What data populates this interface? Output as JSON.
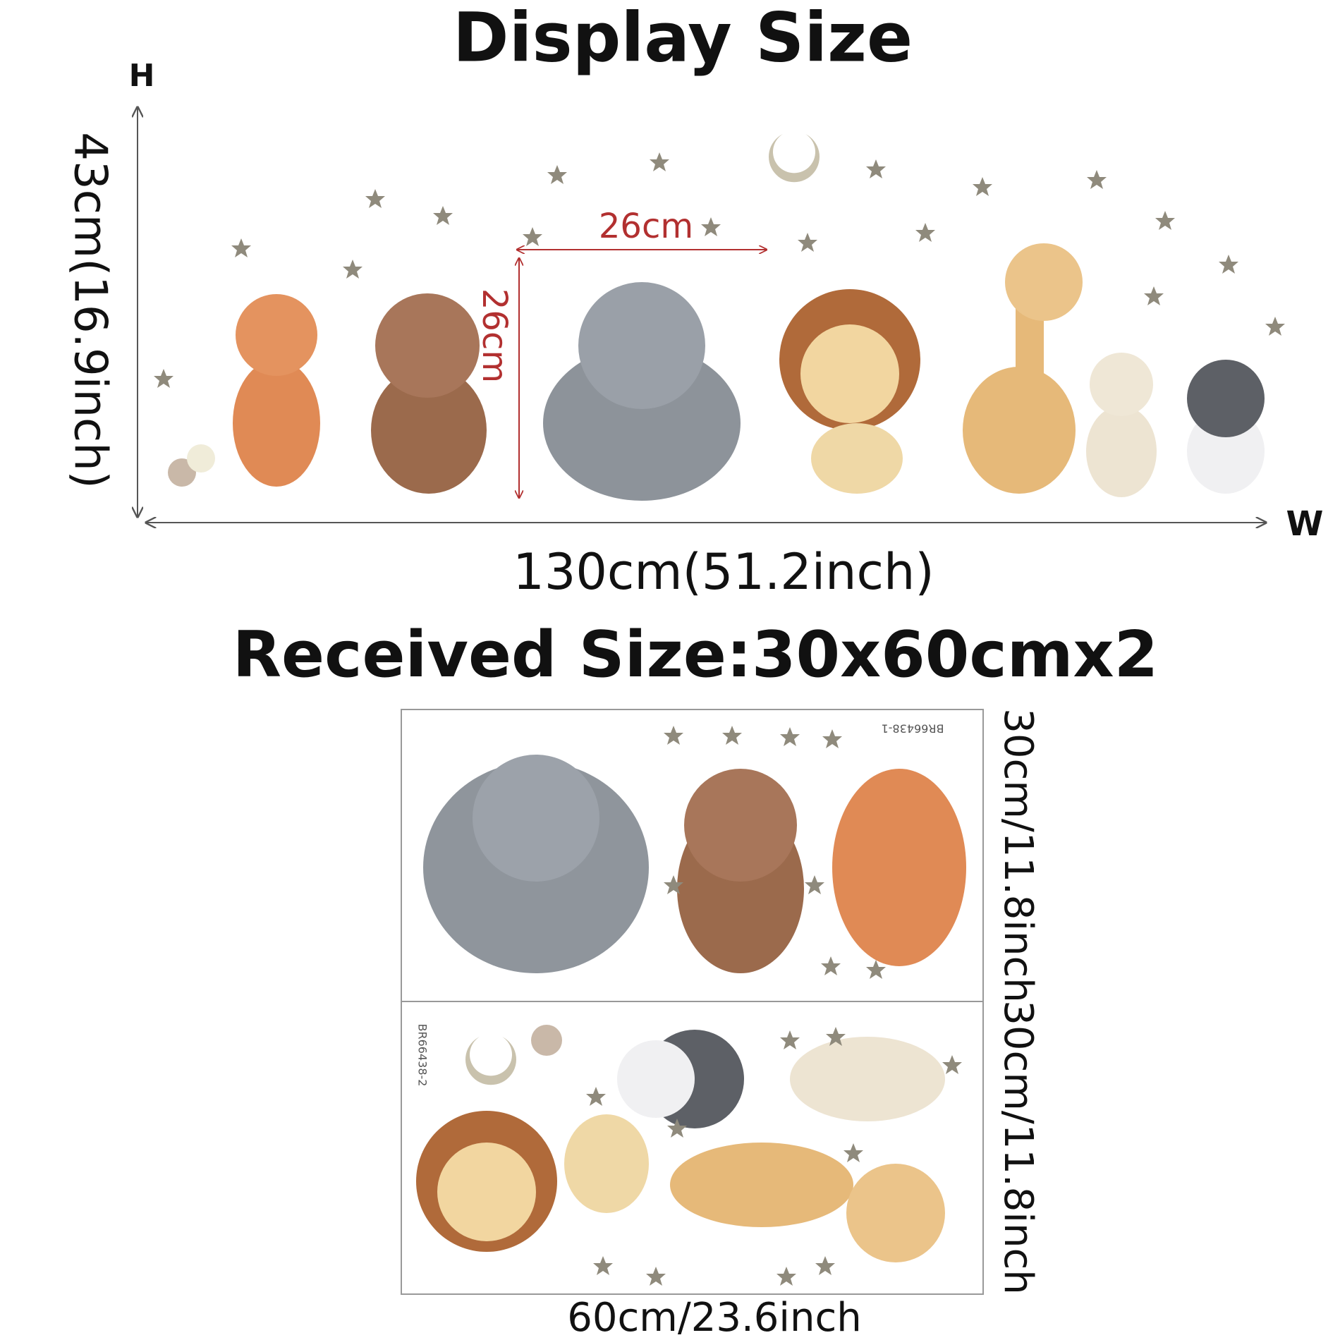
{
  "header": {
    "title": "Display Size"
  },
  "display": {
    "height_axis": "H",
    "height_label": "43cm(16.9inch)",
    "width_axis": "W",
    "width_label": "130cm(51.2inch)",
    "piece_width_label": "26cm",
    "piece_height_label": "26cm"
  },
  "received": {
    "title": "Received Size:30x60cmx2",
    "sheets": [
      {
        "code": "BR66438-1",
        "height_label": "30cm/11.8inch"
      },
      {
        "code": "BR66438-2",
        "height_label": "30cm/11.8inch"
      }
    ],
    "width_label": "60cm/23.6inch"
  }
}
